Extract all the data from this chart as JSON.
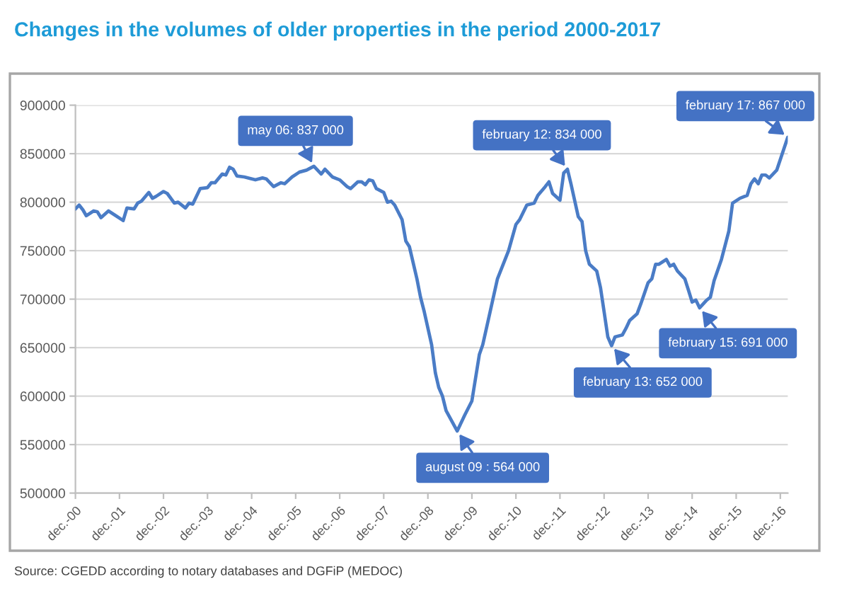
{
  "chart_data": {
    "type": "line",
    "title": "Changes in the volumes of older properties in the period 2000-2017",
    "annotations": [
      {
        "text": "may 06: 837 000",
        "x": "2006-05",
        "y": 837000
      },
      {
        "text": "august 09 : 564 000",
        "x": "2009-08",
        "y": 564000
      },
      {
        "text": "february 12: 834 000",
        "x": "2012-02",
        "y": 834000
      },
      {
        "text": "february 13: 652 000",
        "x": "2013-02",
        "y": 652000
      },
      {
        "text": "february 15: 691 000",
        "x": "2015-02",
        "y": 691000
      },
      {
        "text": "february 17: 867 000",
        "x": "2017-02",
        "y": 867000
      },
      "Source: CGEDD according to notary databases and DGFiP (MEDOC)"
    ],
    "x": [
      "2000-12",
      "2001-01",
      "2001-02",
      "2001-03",
      "2001-05",
      "2001-06",
      "2001-07",
      "2001-09",
      "2001-11",
      "2002-01",
      "2002-02",
      "2002-04",
      "2002-05",
      "2002-06",
      "2002-08",
      "2002-09",
      "2002-10",
      "2002-12",
      "2003-01",
      "2003-03",
      "2003-04",
      "2003-06",
      "2003-07",
      "2003-08",
      "2003-10",
      "2003-12",
      "2004-01",
      "2004-02",
      "2004-04",
      "2004-05",
      "2004-06",
      "2004-07",
      "2004-08",
      "2004-10",
      "2005-01",
      "2005-03",
      "2005-04",
      "2005-06",
      "2005-08",
      "2005-09",
      "2005-11",
      "2006-01",
      "2006-03",
      "2006-05",
      "2006-07",
      "2006-08",
      "2006-10",
      "2006-12",
      "2007-02",
      "2007-03",
      "2007-05",
      "2007-06",
      "2007-07",
      "2007-08",
      "2007-09",
      "2007-10",
      "2007-12",
      "2008-01",
      "2008-02",
      "2008-03",
      "2008-05",
      "2008-06",
      "2008-07",
      "2008-09",
      "2008-10",
      "2008-11",
      "2009-01",
      "2009-02",
      "2009-03",
      "2009-04",
      "2009-05",
      "2009-08",
      "2009-10",
      "2009-12",
      "2010-02",
      "2010-03",
      "2010-05",
      "2010-07",
      "2010-10",
      "2010-12",
      "2011-01",
      "2011-03",
      "2011-05",
      "2011-06",
      "2011-08",
      "2011-09",
      "2011-10",
      "2011-12",
      "2012-01",
      "2012-02",
      "2012-03",
      "2012-05",
      "2012-06",
      "2012-07",
      "2012-08",
      "2012-10",
      "2012-11",
      "2012-12",
      "2013-01",
      "2013-02",
      "2013-03",
      "2013-05",
      "2013-06",
      "2013-07",
      "2013-09",
      "2013-10",
      "2013-12",
      "2014-01",
      "2014-02",
      "2014-03",
      "2014-05",
      "2014-06",
      "2014-07",
      "2014-08",
      "2014-10",
      "2014-11",
      "2014-12",
      "2015-01",
      "2015-02",
      "2015-04",
      "2015-05",
      "2015-06",
      "2015-08",
      "2015-10",
      "2015-11",
      "2016-01",
      "2016-03",
      "2016-04",
      "2016-05",
      "2016-06",
      "2016-07",
      "2016-08",
      "2016-09",
      "2016-11",
      "2017-02"
    ],
    "series": [
      {
        "color": "#4a7cc6",
        "values": [
          793000,
          797000,
          792000,
          786000,
          791000,
          790000,
          784000,
          791000,
          786000,
          781000,
          794000,
          793000,
          799000,
          801000,
          810000,
          804000,
          806000,
          811000,
          809000,
          799000,
          800000,
          794000,
          799000,
          798000,
          814000,
          815000,
          820000,
          820000,
          829000,
          828000,
          836000,
          834000,
          827000,
          826000,
          823000,
          825000,
          824000,
          816000,
          820000,
          819000,
          826000,
          831000,
          833000,
          837000,
          829000,
          834000,
          826000,
          823000,
          816000,
          814000,
          821000,
          821000,
          818000,
          823000,
          822000,
          814000,
          810000,
          800000,
          801000,
          797000,
          782000,
          760000,
          754000,
          721000,
          702000,
          687000,
          653000,
          624000,
          609000,
          600000,
          585000,
          564000,
          580000,
          595000,
          643000,
          653000,
          687000,
          721000,
          750000,
          777000,
          782000,
          797000,
          799000,
          807000,
          816000,
          821000,
          809000,
          802000,
          830000,
          834000,
          819000,
          785000,
          780000,
          750000,
          736000,
          729000,
          712000,
          687000,
          661000,
          652000,
          661000,
          663000,
          670000,
          678000,
          685000,
          695000,
          717000,
          721000,
          736000,
          736000,
          741000,
          734000,
          736000,
          729000,
          721000,
          709000,
          697000,
          699000,
          691000,
          699000,
          702000,
          719000,
          741000,
          770000,
          799000,
          804000,
          807000,
          819000,
          824000,
          819000,
          828000,
          828000,
          825000,
          833000,
          867000
        ]
      }
    ],
    "xlim": [
      "2000-12",
      "2017-02"
    ],
    "xticks": [
      {
        "value": "2000-12",
        "label": "dec.-00"
      },
      {
        "value": "2001-12",
        "label": "dec.-01"
      },
      {
        "value": "2002-12",
        "label": "dec.-02"
      },
      {
        "value": "2003-12",
        "label": "dec.-03"
      },
      {
        "value": "2004-12",
        "label": "dec.-04"
      },
      {
        "value": "2005-12",
        "label": "dec.-05"
      },
      {
        "value": "2006-12",
        "label": "dec.-06"
      },
      {
        "value": "2007-12",
        "label": "dec.-07"
      },
      {
        "value": "2008-12",
        "label": "dec.-08"
      },
      {
        "value": "2009-12",
        "label": "dec.-09"
      },
      {
        "value": "2010-12",
        "label": "dec.-10"
      },
      {
        "value": "2011-12",
        "label": "dec.-11"
      },
      {
        "value": "2012-12",
        "label": "dec.-12"
      },
      {
        "value": "2013-12",
        "label": "dec.-13"
      },
      {
        "value": "2014-12",
        "label": "dec.-14"
      },
      {
        "value": "2015-12",
        "label": "dec.-15"
      },
      {
        "value": "2016-12",
        "label": "dec.-16"
      }
    ],
    "ylim": [
      500000,
      900000
    ],
    "yticks": [
      500000,
      550000,
      600000,
      650000,
      700000,
      750000,
      800000,
      850000,
      900000
    ],
    "grid": "y"
  }
}
